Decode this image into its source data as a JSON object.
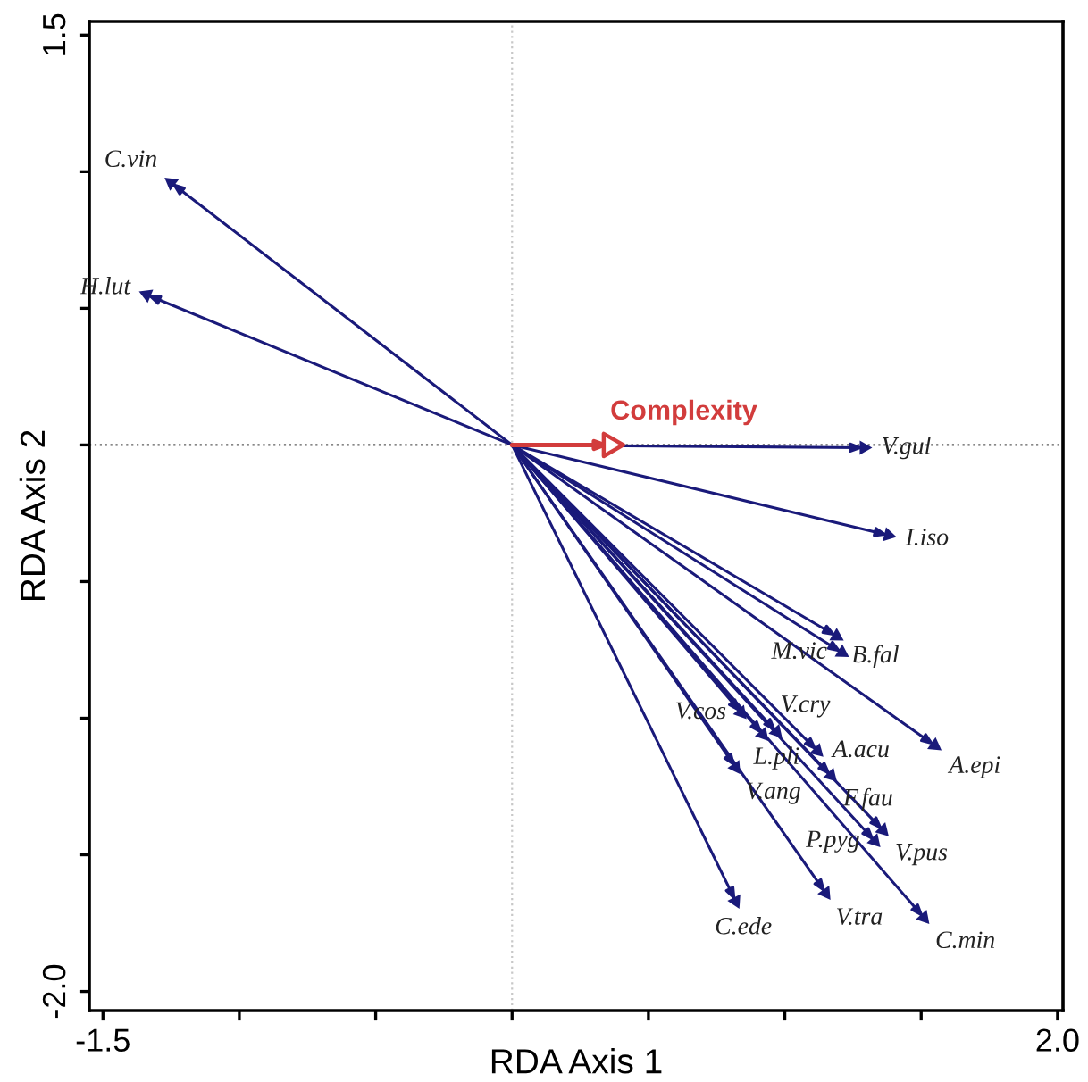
{
  "chart_data": {
    "type": "scatter",
    "xlabel": "RDA Axis 1",
    "ylabel": "RDA Axis 2",
    "xlim": [
      -1.55,
      2.02
    ],
    "ylim": [
      -2.07,
      1.55
    ],
    "xticks": [
      {
        "value": -1.5,
        "label": "-1.5"
      },
      {
        "value": -1.0,
        "label": null
      },
      {
        "value": -0.5,
        "label": null
      },
      {
        "value": 0.0,
        "label": null
      },
      {
        "value": 0.5,
        "label": null
      },
      {
        "value": 1.0,
        "label": null
      },
      {
        "value": 1.5,
        "label": null
      },
      {
        "value": 2.0,
        "label": "2.0"
      }
    ],
    "yticks": [
      {
        "value": -2.0,
        "label": "-2.0"
      },
      {
        "value": -1.5,
        "label": null
      },
      {
        "value": -1.0,
        "label": null
      },
      {
        "value": -0.5,
        "label": null
      },
      {
        "value": 0.0,
        "label": null
      },
      {
        "value": 0.5,
        "label": null
      },
      {
        "value": 1.0,
        "label": null
      },
      {
        "value": 1.5,
        "label": "1.5"
      }
    ],
    "grid": false,
    "legend": false,
    "ref_lines": [
      {
        "axis": "x",
        "value": 0,
        "label": null,
        "color": "#c8c8c8",
        "line_style": "dotted"
      },
      {
        "axis": "y",
        "value": 0,
        "label": null,
        "color": "#606060",
        "line_style": "dotted"
      }
    ],
    "series": [
      {
        "color": "#1a1a7a",
        "x": [
          -1.25,
          -1.34,
          1.29,
          1.38,
          1.19,
          1.21,
          1.55,
          0.84,
          0.92,
          0.97,
          1.12,
          1.17,
          1.36,
          1.33,
          1.51,
          1.15,
          0.82,
          0.82
        ],
        "values": [
          0.96,
          0.55,
          -0.01,
          -0.33,
          -0.7,
          -0.76,
          -1.1,
          -0.98,
          -1.06,
          -1.05,
          -1.12,
          -1.21,
          -1.41,
          -1.45,
          -1.73,
          -1.64,
          -1.67,
          -1.18
        ]
      },
      {
        "name": "Complexity",
        "color": "#d23c3c",
        "x": [
          0.36
        ],
        "values": [
          0.0
        ]
      }
    ],
    "annotations": [
      {
        "text": "C.vin",
        "x": -1.25,
        "y": 0.96
      },
      {
        "text": "H.lut",
        "x": -1.34,
        "y": 0.55
      },
      {
        "text": "V.gul",
        "x": 1.29,
        "y": -0.01
      },
      {
        "text": "I.iso",
        "x": 1.38,
        "y": -0.33
      },
      {
        "text": "B.fal",
        "x": 1.19,
        "y": -0.7
      },
      {
        "text": "M.vic",
        "x": 1.21,
        "y": -0.76
      },
      {
        "text": "A.epi",
        "x": 1.55,
        "y": -1.1
      },
      {
        "text": "V.cos",
        "x": 0.84,
        "y": -0.98
      },
      {
        "text": "V.cry",
        "x": 0.92,
        "y": -1.06
      },
      {
        "text": "L.pli",
        "x": 0.97,
        "y": -1.05
      },
      {
        "text": "A.acu",
        "x": 1.12,
        "y": -1.12
      },
      {
        "text": "F.fau",
        "x": 1.17,
        "y": -1.21
      },
      {
        "text": "V.pus",
        "x": 1.36,
        "y": -1.41
      },
      {
        "text": "P.pyg",
        "x": 1.33,
        "y": -1.45
      },
      {
        "text": "C.min",
        "x": 1.51,
        "y": -1.73
      },
      {
        "text": "V.tra",
        "x": 1.15,
        "y": -1.64
      },
      {
        "text": "C.ede",
        "x": 0.82,
        "y": -1.67
      },
      {
        "text": "V.ang",
        "x": 0.82,
        "y": -1.18
      }
    ]
  }
}
